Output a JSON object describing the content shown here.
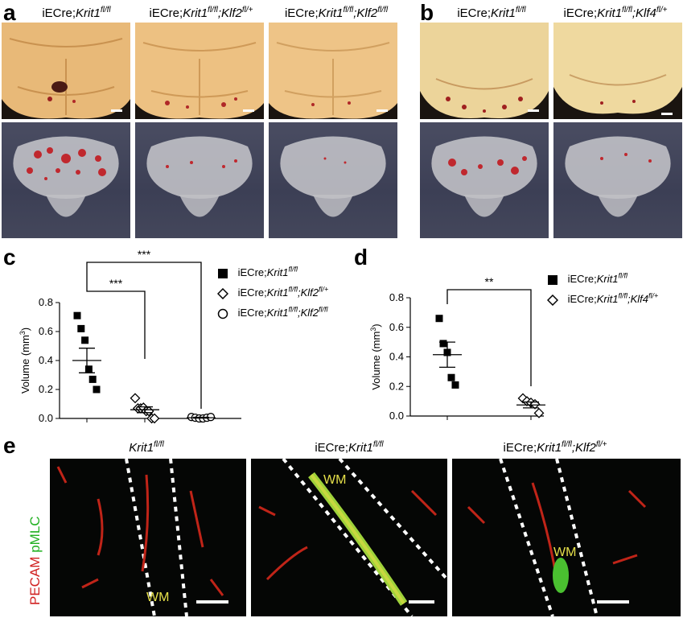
{
  "panels": {
    "a": {
      "label": "a",
      "columns": [
        {
          "prefix": "iECre;",
          "gene1": "Krit1",
          "sup1": "fl/fl",
          "sep": "",
          "gene2": "",
          "sup2": ""
        },
        {
          "prefix": "iECre;",
          "gene1": "Krit1",
          "sup1": "fl/fl",
          "sep": ";",
          "gene2": "Klf2",
          "sup2": "fl/+"
        },
        {
          "prefix": "iECre;",
          "gene1": "Krit1",
          "sup1": "fl/fl",
          "sep": ";",
          "gene2": "Klf2",
          "sup2": "fl/fl"
        }
      ]
    },
    "b": {
      "label": "b",
      "columns": [
        {
          "prefix": "iECre;",
          "gene1": "Krit1",
          "sup1": "fl/fl",
          "sep": "",
          "gene2": "",
          "sup2": ""
        },
        {
          "prefix": "iECre;",
          "gene1": "Krit1",
          "sup1": "fl/fl",
          "sep": ";",
          "gene2": "Klf4",
          "sup2": "fl/+"
        }
      ]
    },
    "c": {
      "label": "c"
    },
    "d": {
      "label": "d"
    },
    "e": {
      "label": "e",
      "side_label": {
        "red": "PECAM",
        "green": "pMLC"
      },
      "columns": [
        {
          "prefix": "",
          "gene1": "Krit1",
          "sup1": "fl/fl",
          "sep": "",
          "gene2": "",
          "sup2": "",
          "wm": "WM"
        },
        {
          "prefix": "iECre;",
          "gene1": "Krit1",
          "sup1": "fl/fl",
          "sep": "",
          "gene2": "",
          "sup2": "",
          "wm": "WM"
        },
        {
          "prefix": "iECre;",
          "gene1": "Krit1",
          "sup1": "fl/fl",
          "sep": ";",
          "gene2": "Klf2",
          "sup2": "fl/+",
          "wm": "WM"
        }
      ]
    }
  },
  "chart_data": [
    {
      "panel": "c",
      "type": "scatter",
      "ylabel": "Volume (mm",
      "ylabel_sup": "3",
      "ylabel_end": ")",
      "ylim": [
        0,
        0.8
      ],
      "yticks": [
        "0.0",
        "0.2",
        "0.4",
        "0.6",
        "0.8"
      ],
      "series": [
        {
          "name": {
            "prefix": "iECre;",
            "gene1": "Krit1",
            "sup1": "fl/fl",
            "sep": "",
            "gene2": "",
            "sup2": ""
          },
          "marker": "filled-square",
          "values": [
            0.71,
            0.62,
            0.54,
            0.34,
            0.27,
            0.2
          ],
          "mean": 0.4,
          "sem": 0.085
        },
        {
          "name": {
            "prefix": "iECre;",
            "gene1": "Krit1",
            "sup1": "fl/fl",
            "sep": ";",
            "gene2": "Klf2",
            "sup2": "fl/+"
          },
          "marker": "open-diamond",
          "values": [
            0.14,
            0.07,
            0.07,
            0.075,
            0.05,
            0.05,
            0.0,
            0.0
          ],
          "mean": 0.06,
          "sem": 0.02
        },
        {
          "name": {
            "prefix": "iECre;",
            "gene1": "Krit1",
            "sup1": "fl/fl",
            "sep": ";",
            "gene2": "Klf2",
            "sup2": "fl/fl"
          },
          "marker": "open-circle",
          "values": [
            0.01,
            0.005,
            0.0,
            0.0,
            0.005,
            0.01
          ],
          "mean": 0.005,
          "sem": 0.003
        }
      ],
      "significance": [
        {
          "from": 0,
          "to": 1,
          "label": "***"
        },
        {
          "from": 0,
          "to": 2,
          "label": "***"
        }
      ]
    },
    {
      "panel": "d",
      "type": "scatter",
      "ylabel": "Volume (mm",
      "ylabel_sup": "3",
      "ylabel_end": ")",
      "ylim": [
        0,
        0.8
      ],
      "yticks": [
        "0.0",
        "0.2",
        "0.4",
        "0.6",
        "0.8"
      ],
      "series": [
        {
          "name": {
            "prefix": "iECre;",
            "gene1": "Krit1",
            "sup1": "fl/fl",
            "sep": "",
            "gene2": "",
            "sup2": ""
          },
          "marker": "filled-square",
          "values": [
            0.66,
            0.49,
            0.43,
            0.26,
            0.21
          ],
          "mean": 0.415,
          "sem": 0.085
        },
        {
          "name": {
            "prefix": "iECre;",
            "gene1": "Krit1",
            "sup1": "fl/fl",
            "sep": ";",
            "gene2": "Klf4",
            "sup2": "fl/+"
          },
          "marker": "open-diamond",
          "values": [
            0.12,
            0.1,
            0.09,
            0.08,
            0.02
          ],
          "mean": 0.075,
          "sem": 0.02
        }
      ],
      "significance": [
        {
          "from": 0,
          "to": 1,
          "label": "**"
        }
      ]
    }
  ]
}
